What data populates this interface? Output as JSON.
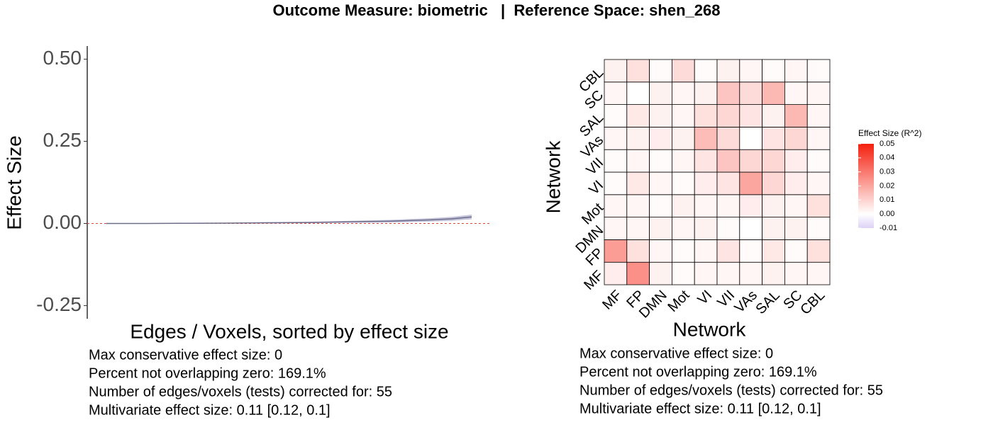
{
  "title": "Outcome Measure: biometric   |  Reference Space: shen_268",
  "chart_data": [
    {
      "type": "line",
      "xlabel": "Edges / Voxels, sorted by effect size",
      "ylabel": "Effect Size",
      "x": [
        1,
        7,
        13,
        19,
        25,
        31,
        37,
        43,
        49,
        52,
        55
      ],
      "series": [
        {
          "color": "#6e6e8a",
          "band_color": "#c4c4dc",
          "values": [
            0,
            0,
            0.0005,
            0.001,
            0.002,
            0.003,
            0.005,
            0.007,
            0.011,
            0.014,
            0.02
          ],
          "lower": [
            -0.001,
            -0.001,
            -0.0005,
            0,
            0,
            0.001,
            0.002,
            0.003,
            0.006,
            0.008,
            0.013
          ],
          "upper": [
            0.001,
            0.001,
            0.0015,
            0.002,
            0.004,
            0.005,
            0.008,
            0.011,
            0.016,
            0.02,
            0.027
          ]
        }
      ],
      "reference_line": {
        "value": 0,
        "color": "#e0453a"
      },
      "xlim": [
        1,
        55
      ],
      "ylim": [
        -0.29,
        0.54
      ],
      "yticks": [
        {
          "value": 0.5,
          "label": "0.50"
        },
        {
          "value": 0.25,
          "label": "0.25"
        },
        {
          "value": 0,
          "label": "0.00"
        },
        {
          "value": -0.25,
          "label": "-0.25"
        }
      ],
      "notes": [
        "Max conservative effect size: 0",
        "Percent not overlapping zero: 169.1%",
        "Number of edges/voxels (tests) corrected for: 55",
        "Multivariate effect size: 0.11 [0.12, 0.1]"
      ]
    },
    {
      "type": "heatmap",
      "xlabel": "Network",
      "ylabel": "Network",
      "categories": [
        "MF",
        "FP",
        "DMN",
        "Mot",
        "VI",
        "VII",
        "VAs",
        "SAL",
        "SC",
        "CBL"
      ],
      "values": [
        [
          0.004,
          0.025,
          0.003,
          0.001,
          0.002,
          0.002,
          0.002,
          0.003,
          0.002,
          0.002
        ],
        [
          0.022,
          0.007,
          0.002,
          0.001,
          0.002,
          0.006,
          0.001,
          0.005,
          0.001,
          0.007
        ],
        [
          0.002,
          0.002,
          0.003,
          0.002,
          0.003,
          0.001,
          0,
          0.003,
          0.003,
          0.001
        ],
        [
          0.002,
          0.002,
          0.001,
          0.003,
          0.002,
          0.002,
          0.004,
          0.003,
          0.002,
          0.007
        ],
        [
          0.001,
          0.005,
          0.002,
          0.001,
          0.004,
          0.006,
          0.02,
          0.009,
          0.004,
          0.002
        ],
        [
          0.001,
          0.002,
          0.001,
          0.002,
          0.006,
          0.013,
          0.009,
          0.009,
          0.004,
          0.001
        ],
        [
          0.002,
          0.003,
          0.004,
          0.003,
          0.015,
          0.008,
          0,
          0.006,
          0.009,
          0.002
        ],
        [
          0.001,
          0.005,
          0.003,
          0.002,
          0.007,
          0.009,
          0.006,
          0.003,
          0.016,
          0.002
        ],
        [
          0.002,
          0,
          0.003,
          0.002,
          0.003,
          0.013,
          0.008,
          0.016,
          0.002,
          0.002
        ],
        [
          0.003,
          0.007,
          0.001,
          0.008,
          0.001,
          0.003,
          0.002,
          0.001,
          0.002,
          0.001
        ]
      ],
      "colorbar": {
        "title": "Effect Size (R^2)",
        "lim": [
          -0.01,
          0.05
        ],
        "ticks": [
          {
            "value": 0.05,
            "label": "0.05"
          },
          {
            "value": 0.04,
            "label": "0.04"
          },
          {
            "value": 0.03,
            "label": "0.03"
          },
          {
            "value": 0.02,
            "label": "0.02"
          },
          {
            "value": 0.01,
            "label": "0.01"
          },
          {
            "value": 0,
            "label": "0.00"
          },
          {
            "value": -0.01,
            "label": "-0.01"
          }
        ],
        "low": "#ddd2f7",
        "mid": "#ffffff",
        "high": "#f5200f"
      },
      "notes": [
        "Max conservative effect size: 0",
        "Percent not overlapping zero: 169.1%",
        "Number of edges/voxels (tests) corrected for: 55",
        "Multivariate effect size: 0.11 [0.12, 0.1]"
      ]
    }
  ]
}
